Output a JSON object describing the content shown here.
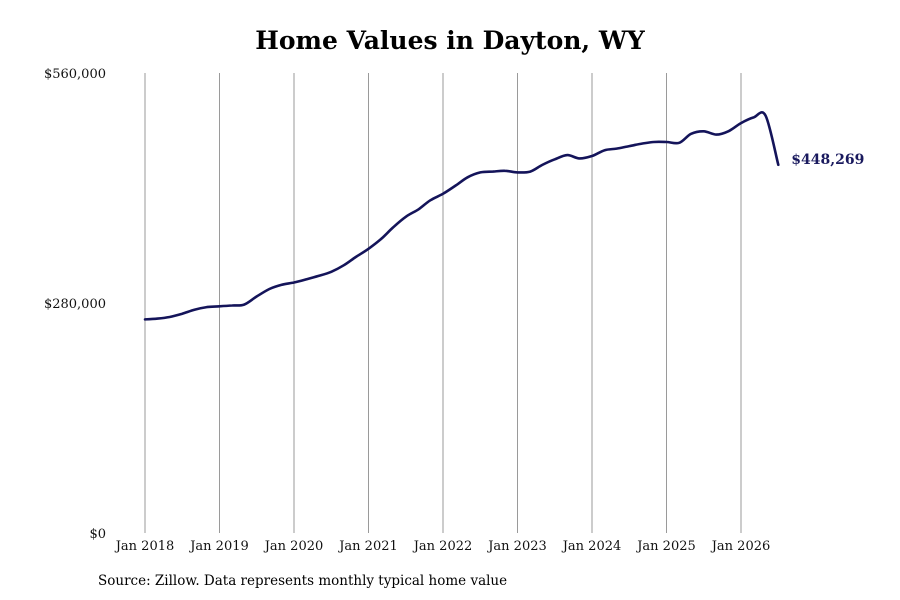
{
  "chart_data": {
    "type": "line",
    "title": "Home Values in Dayton, WY",
    "ylim": [
      0,
      560000
    ],
    "y_ticks": [
      0,
      280000,
      560000
    ],
    "y_tick_labels": [
      "$0",
      "$280,000",
      "$560,000"
    ],
    "x_ticks": [
      "Jan 2018",
      "Jan 2019",
      "Jan 2020",
      "Jan 2021",
      "Jan 2022",
      "Jan 2023",
      "Jan 2024",
      "Jan 2025",
      "Jan 2026"
    ],
    "x_tick_years": [
      2018,
      2019,
      2020,
      2021,
      2022,
      2023,
      2024,
      2025,
      2026
    ],
    "grid": "vertical",
    "line_color": "#14145a",
    "end_value_label": "$448,269",
    "series": [
      {
        "x": [
          2018.0,
          2018.17,
          2018.33,
          2018.5,
          2018.67,
          2018.83,
          2019.0,
          2019.17,
          2019.33,
          2019.5,
          2019.67,
          2019.83,
          2020.0,
          2020.17,
          2020.33,
          2020.5,
          2020.67,
          2020.83,
          2021.0,
          2021.17,
          2021.33,
          2021.5,
          2021.67,
          2021.83,
          2022.0,
          2022.17,
          2022.33,
          2022.5,
          2022.67,
          2022.83,
          2023.0,
          2023.17,
          2023.33,
          2023.5,
          2023.67,
          2023.83,
          2024.0,
          2024.17,
          2024.33,
          2024.5,
          2024.67,
          2024.83,
          2025.0,
          2025.17,
          2025.33,
          2025.5,
          2025.67,
          2025.83,
          2026.0,
          2026.17,
          2026.33,
          2026.5
        ],
        "values": [
          260000,
          261000,
          263000,
          267000,
          272000,
          275000,
          276000,
          277000,
          278000,
          288000,
          297000,
          302000,
          305000,
          309000,
          313000,
          318000,
          326000,
          336000,
          346000,
          358000,
          372000,
          385000,
          394000,
          405000,
          413000,
          423000,
          433000,
          439000,
          440000,
          441000,
          439000,
          440000,
          448000,
          455000,
          460000,
          456000,
          459000,
          466000,
          468000,
          471000,
          474000,
          476000,
          476000,
          475000,
          486000,
          489000,
          485000,
          489000,
          499000,
          506000,
          508000,
          448269
        ]
      }
    ]
  },
  "footer": {
    "source": "Source: Zillow. Data represents monthly typical home value"
  }
}
